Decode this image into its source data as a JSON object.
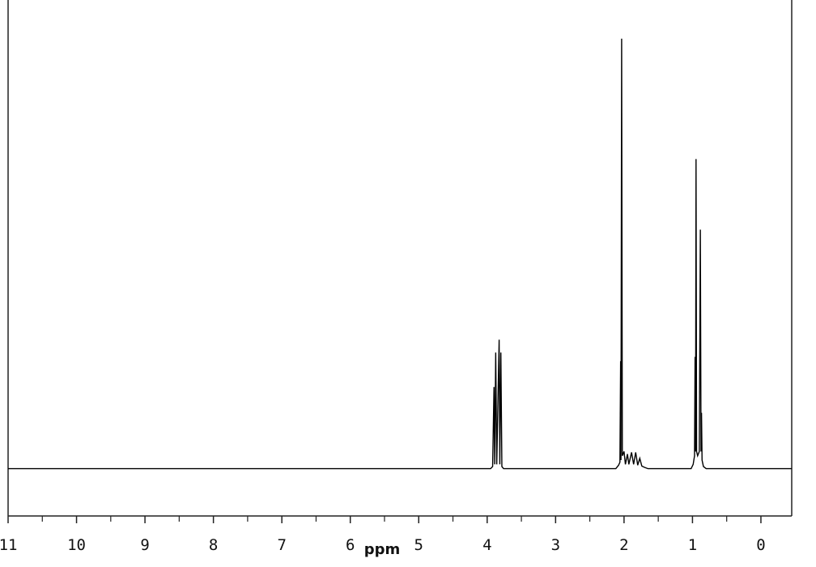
{
  "chart_data": {
    "type": "line",
    "xlabel": "ppm",
    "x": [
      11,
      3.95,
      3.92,
      3.9,
      3.89,
      3.875,
      3.86,
      3.825,
      3.815,
      3.8,
      3.785,
      3.76,
      2.12,
      2.08,
      2.06,
      2.05,
      2.045,
      2.035,
      2.025,
      2.0,
      1.98,
      1.95,
      1.93,
      1.89,
      1.86,
      1.83,
      1.8,
      1.77,
      1.74,
      1.7,
      1.65,
      1.02,
      0.99,
      0.97,
      0.962,
      0.955,
      0.948,
      0.94,
      0.925,
      0.9,
      0.885,
      0.875,
      0.868,
      0.86,
      0.84,
      0.8,
      -0.45
    ],
    "values": [
      0,
      0,
      0.5,
      19,
      1,
      27,
      1,
      30,
      1,
      27,
      0.5,
      0,
      0,
      0.8,
      1.5,
      25,
      2,
      100,
      3,
      4,
      1,
      3.4,
      1,
      3.8,
      1,
      3.8,
      0.8,
      2.4,
      0.6,
      0.3,
      0,
      0,
      1,
      3,
      26,
      4,
      72,
      4,
      3,
      4,
      55.6,
      4,
      13,
      2,
      0.5,
      0,
      0
    ],
    "color": "#000000",
    "xlim": [
      11,
      -0.45
    ],
    "ylim": [
      -11,
      109
    ],
    "xticks": [
      11,
      10,
      9,
      8,
      7,
      6,
      5,
      4,
      3,
      2,
      1,
      0
    ],
    "xminorticks": [
      10.5,
      9.5,
      8.5,
      7.5,
      6.5,
      5.5,
      4.5,
      3.5,
      2.5,
      1.5,
      0.5
    ]
  }
}
